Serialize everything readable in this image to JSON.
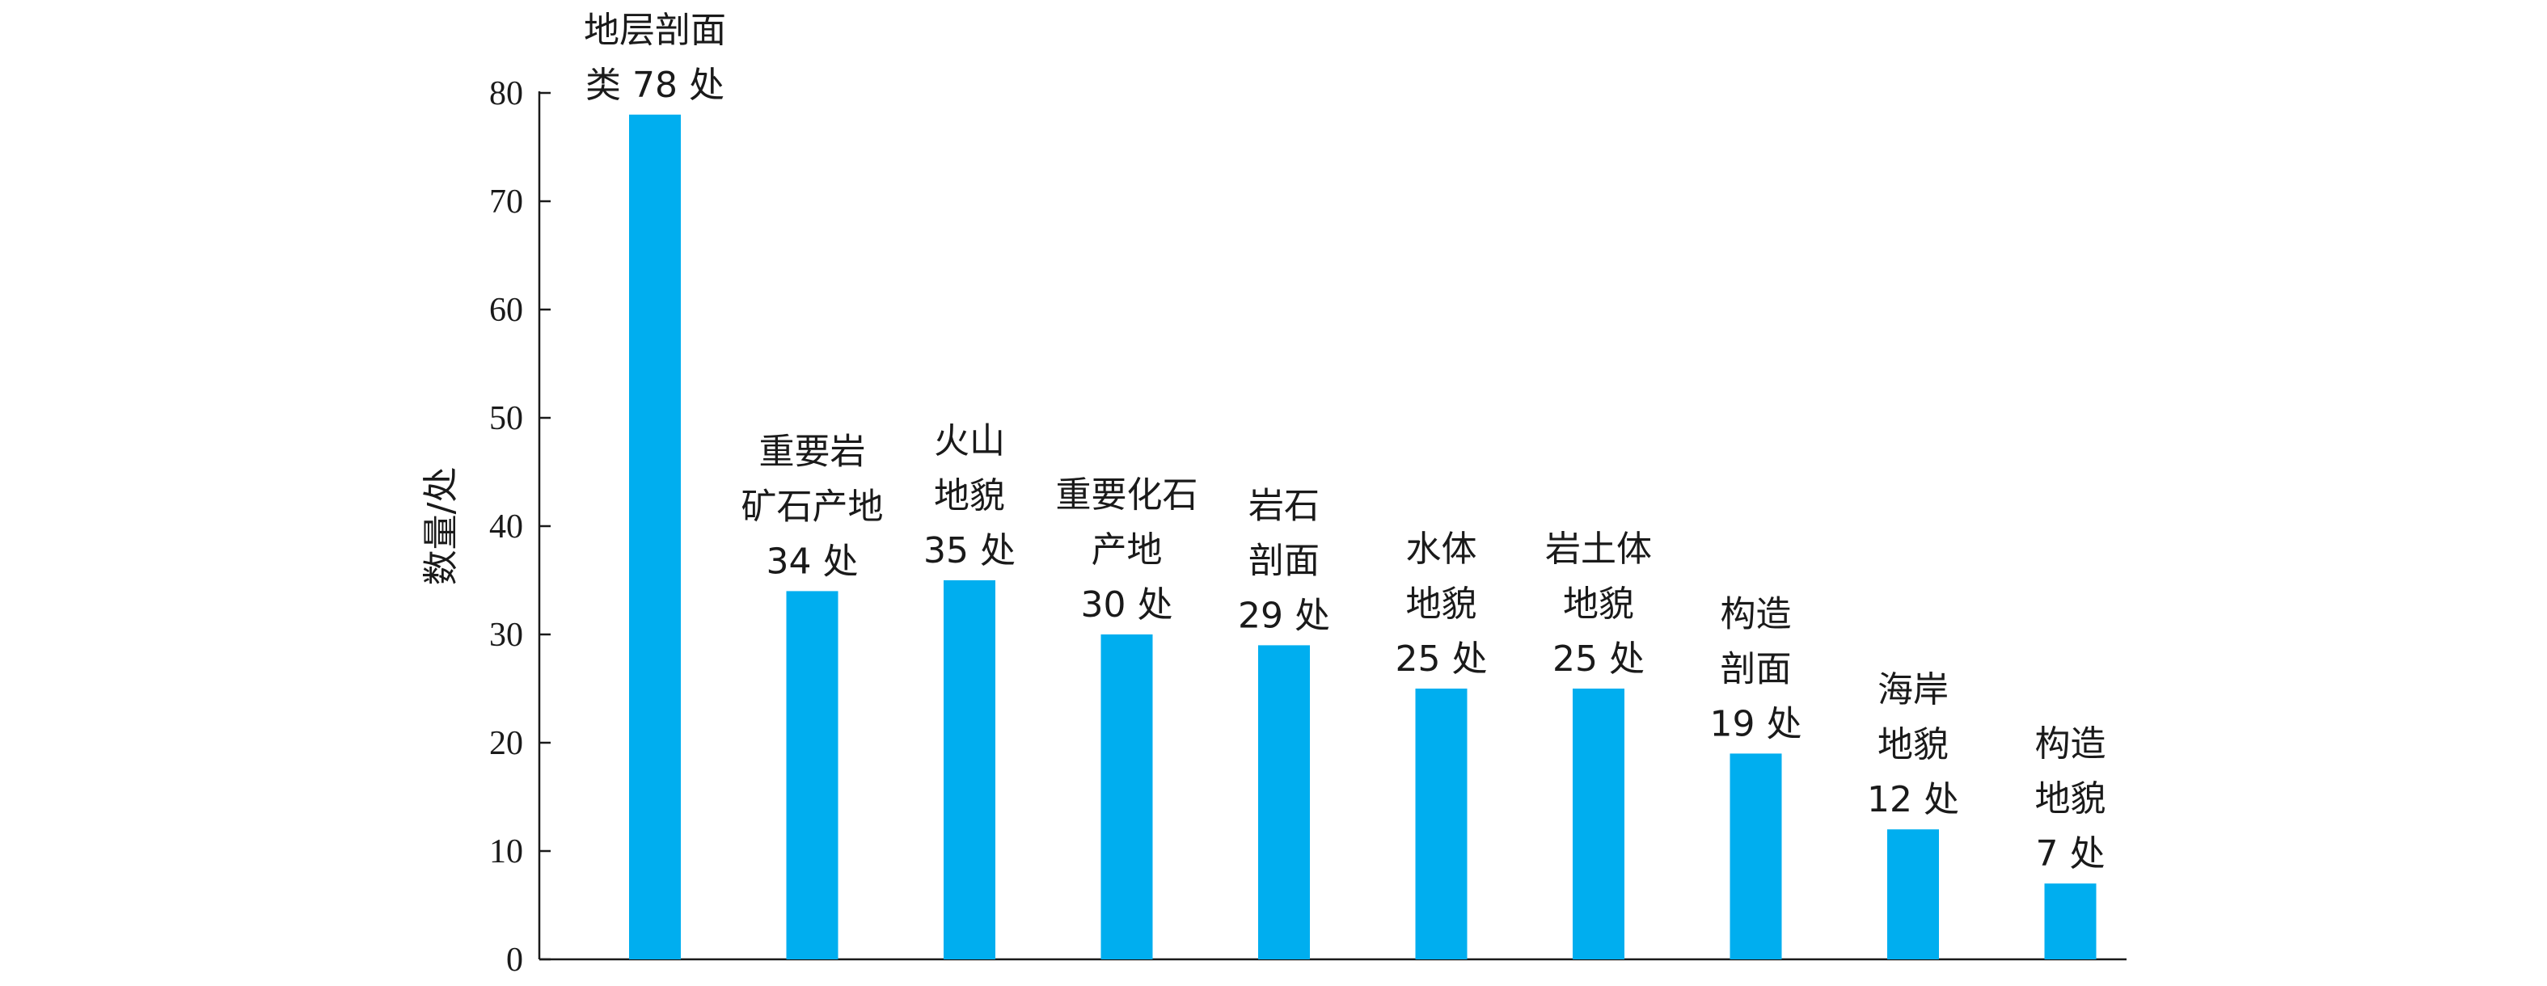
{
  "chart_data": {
    "type": "bar",
    "categories": [
      "地层剖面类",
      "重要岩矿石产地",
      "火山地貌",
      "重要化石产地",
      "岩石剖面",
      "水体地貌",
      "岩土体地貌",
      "构造剖面",
      "海岸地貌",
      "构造地貌"
    ],
    "values": [
      78,
      34,
      35,
      30,
      29,
      25,
      25,
      19,
      12,
      7
    ],
    "bar_labels": [
      [
        "地层剖面",
        "类 78 处"
      ],
      [
        "重要岩",
        "矿石产地",
        "34 处"
      ],
      [
        "火山",
        "地貌",
        "35 处"
      ],
      [
        "重要化石",
        "产地",
        "30 处"
      ],
      [
        "岩石",
        "剖面",
        "29 处"
      ],
      [
        "水体",
        "地貌",
        "25 处"
      ],
      [
        "岩土体",
        "地貌",
        "25 处"
      ],
      [
        "构造",
        "剖面",
        "19 处"
      ],
      [
        "海岸",
        "地貌",
        "12 处"
      ],
      [
        "构造",
        "地貌",
        "7 处"
      ]
    ],
    "ylabel": "数量/处",
    "ylim": [
      0,
      80
    ],
    "yticks": [
      "0",
      "10",
      "20",
      "30",
      "40",
      "50",
      "60",
      "70",
      "80"
    ],
    "bar_color": "#00AEEF",
    "grid": false,
    "legend": "none"
  }
}
